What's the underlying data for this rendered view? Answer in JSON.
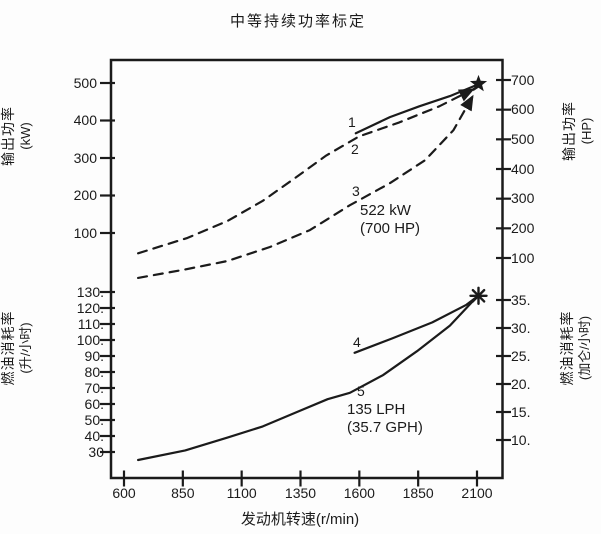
{
  "title": "中等持续功率标定",
  "axes": {
    "x": {
      "label": "发动机转速(r/min)",
      "ticks": [
        "600",
        "850",
        "1100",
        "1350",
        "1600",
        "1850",
        "2100"
      ]
    },
    "power_kw": {
      "name": "输出功率",
      "unit": "(kW)",
      "ticks": [
        "500",
        "400",
        "300",
        "200",
        "100"
      ]
    },
    "power_hp": {
      "name": "输出功率",
      "unit": "(HP)",
      "ticks": [
        "700",
        "600",
        "500",
        "400",
        "300",
        "200",
        "100"
      ]
    },
    "fuel_lph": {
      "name": "燃油消耗率",
      "unit": "(升/小时)",
      "ticks": [
        "130.",
        "120.",
        "110.",
        "100.",
        "90.",
        "80.",
        "70.",
        "60.",
        "50.",
        "40.",
        "30"
      ]
    },
    "fuel_gph": {
      "name": "燃油消耗率",
      "unit": "(加仑/小时)",
      "ticks": [
        "35.",
        "30.",
        "25.",
        "20.",
        "15.",
        "10."
      ]
    }
  },
  "chart_data": {
    "type": "line",
    "title": "中等持续功率标定",
    "xlabel": "发动机转速(r/min)",
    "x_ticks": [
      600,
      850,
      1100,
      1350,
      1600,
      1850,
      2100
    ],
    "x_range": [
      540,
      2210
    ],
    "grid": false,
    "y_axes": {
      "kW": {
        "label": "输出功率 (kW)",
        "ticks": [
          500,
          400,
          300,
          200,
          100
        ]
      },
      "HP": {
        "label": "输出功率 (HP)",
        "ticks": [
          700,
          600,
          500,
          400,
          300,
          200,
          100
        ]
      },
      "LPH": {
        "label": "燃油消耗率 (升/小时)",
        "ticks": [
          130,
          120,
          110,
          100,
          90,
          80,
          70,
          60,
          50,
          40,
          30
        ]
      },
      "GPH": {
        "label": "燃油消耗率 (加仑/小时)",
        "ticks": [
          35,
          30,
          25,
          20,
          15,
          10
        ]
      }
    },
    "series": [
      {
        "label": "1",
        "style": "solid",
        "y_axis": "kW",
        "end_marker": "star",
        "points": [
          [
            1585,
            366
          ],
          [
            1730,
            409
          ],
          [
            1855,
            438
          ],
          [
            1985,
            465
          ],
          [
            2100,
            495
          ]
        ]
      },
      {
        "label": "2",
        "style": "dashed",
        "y_axis": "kW",
        "end_marker": "arrow",
        "points": [
          [
            660,
            46
          ],
          [
            870,
            87
          ],
          [
            1040,
            132
          ],
          [
            1190,
            186
          ],
          [
            1330,
            248
          ],
          [
            1460,
            307
          ],
          [
            1600,
            358
          ],
          [
            1770,
            395
          ],
          [
            1940,
            438
          ],
          [
            2090,
            485
          ]
        ]
      },
      {
        "label": "3",
        "style": "dashed",
        "y_axis": "HP",
        "end_marker": "arrow",
        "points": [
          [
            660,
            33
          ],
          [
            850,
            60
          ],
          [
            1040,
            90
          ],
          [
            1220,
            137
          ],
          [
            1390,
            194
          ],
          [
            1560,
            278
          ],
          [
            1730,
            352
          ],
          [
            1880,
            430
          ],
          [
            2000,
            531
          ],
          [
            2085,
            650
          ]
        ]
      },
      {
        "label": "4",
        "style": "solid",
        "y_axis": "LPH",
        "end_marker": "asterisk",
        "points": [
          [
            1580,
            92
          ],
          [
            1740,
            101
          ],
          [
            1910,
            111
          ],
          [
            2055,
            122
          ],
          [
            2100,
            127
          ]
        ]
      },
      {
        "label": "5",
        "style": "solid",
        "y_axis": "LPH",
        "end_marker": "asterisk",
        "points": [
          [
            660,
            25
          ],
          [
            860,
            31
          ],
          [
            1040,
            39
          ],
          [
            1190,
            46
          ],
          [
            1335,
            55
          ],
          [
            1465,
            63
          ],
          [
            1560,
            67
          ],
          [
            1700,
            78
          ],
          [
            1845,
            93
          ],
          [
            1985,
            109
          ],
          [
            2100,
            127
          ]
        ]
      }
    ],
    "annotations": [
      {
        "lines": [
          "522 kW",
          "(700 HP)"
        ]
      },
      {
        "lines": [
          "135 LPH",
          "(35.7 GPH)"
        ]
      }
    ],
    "ink_color": "#1b1b1b",
    "background_color": "#fdfdfd"
  }
}
